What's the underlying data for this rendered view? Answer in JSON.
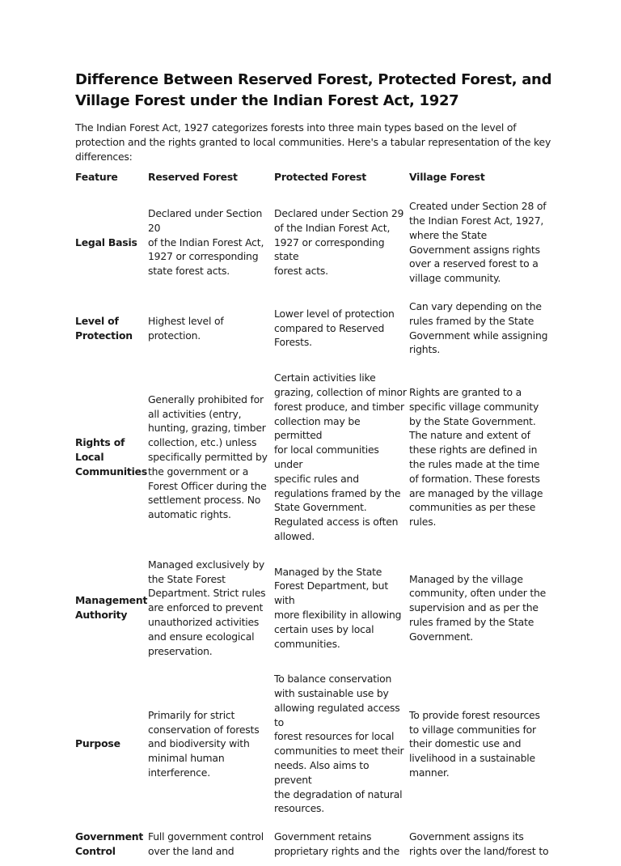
{
  "document": {
    "title": "Difference Between Reserved Forest, Protected Forest, and Village Forest under the Indian Forest Act, 1927",
    "intro": "The Indian Forest Act, 1927 categorizes forests into three main types based on the level of protection and the rights granted to local communities. Here's a tabular representation of the key differences:",
    "table": {
      "headers": [
        "Feature",
        "Reserved Forest",
        "Protected Forest",
        "Village Forest"
      ],
      "rows": [
        [
          "Legal Basis",
          "Declared under Section 20\nof the Indian Forest Act,\n1927 or corresponding\nstate forest acts.",
          "Declared under Section 29\nof the Indian Forest Act,\n1927 or corresponding state\nforest acts.",
          "Created under Section 28 of\nthe Indian Forest Act, 1927,\nwhere the State\nGovernment assigns rights\nover a reserved forest to a\nvillage community."
        ],
        [
          "Level of\nProtection",
          "Highest level of\nprotection.",
          "Lower level of protection\ncompared to Reserved\nForests.",
          "Can vary depending on the\nrules framed by the State\nGovernment while assigning\nrights."
        ],
        [
          "Rights of Local\nCommunities",
          "Generally prohibited for\nall activities (entry,\nhunting, grazing, timber\ncollection, etc.) unless\nspecifically permitted by\nthe government or a\nForest Officer during the\nsettlement process. No\nautomatic rights.",
          "Certain activities like\ngrazing, collection of minor\nforest produce, and timber\ncollection may be permitted\nfor local communities under\nspecific rules and\nregulations framed by the\nState Government.\nRegulated access is often\nallowed.",
          "Rights are granted to a\nspecific village community\nby the State Government.\nThe nature and extent of\nthese rights are defined in\nthe rules made at the time\nof formation. These forests\nare managed by the village\ncommunities as per these\nrules."
        ],
        [
          "Management\nAuthority",
          "Managed exclusively by\nthe State Forest\nDepartment. Strict rules\nare enforced to prevent\nunauthorized activities\nand ensure ecological\npreservation.",
          "Managed by the State\nForest Department, but with\nmore flexibility in allowing\ncertain uses by local\ncommunities.",
          "Managed by the village\ncommunity, often under the\nsupervision and as per the\nrules framed by the State\nGovernment."
        ],
        [
          "Purpose",
          "Primarily for strict\nconservation of forests\nand biodiversity with\nminimal human\ninterference.",
          "To balance conservation\nwith sustainable use by\nallowing regulated access to\nforest resources for local\ncommunities to meet their\nneeds. Also aims to prevent\nthe degradation of natural\nresources.",
          "To provide forest resources\nto village communities for\ntheir domestic use and\nlivelihood in a sustainable\nmanner."
        ],
        [
          "Government\nControl",
          "Full government control\nover the land and",
          "Government retains\nproprietary rights and the",
          "Government assigns its\nrights over the land/forest to"
        ]
      ]
    }
  }
}
